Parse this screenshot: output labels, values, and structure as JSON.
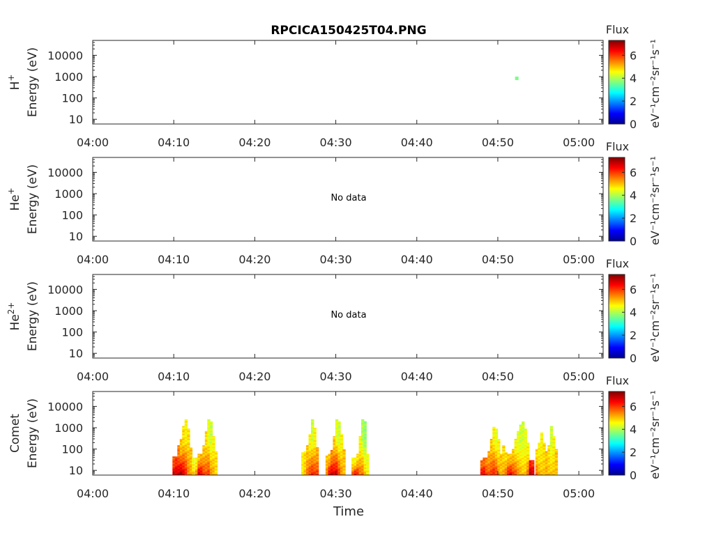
{
  "chart_data": {
    "type": "heatmap",
    "title": "RPCICA150425T04.PNG",
    "xlabel": "Time",
    "x_ticks": [
      "04:00",
      "04:10",
      "04:20",
      "04:30",
      "04:40",
      "04:50",
      "05:00"
    ],
    "x_range_minutes": [
      0,
      63
    ],
    "y_ticks": [
      "10",
      "100",
      "1000",
      "10000"
    ],
    "y_log_range": [
      6,
      50000
    ],
    "y_axis_label": "Energy (eV)",
    "colorbar": {
      "title": "Flux",
      "unit_label": "eV⁻¹cm⁻²sr⁻¹s⁻¹",
      "ticks": [
        "0",
        "2",
        "4",
        "6"
      ],
      "range": [
        0,
        7.3
      ],
      "colormap": "jet"
    },
    "panels": [
      {
        "species_label": "H",
        "superscript": "+",
        "no_data_text": "",
        "cells": [
          [
            52.3,
            800,
            3.6
          ]
        ]
      },
      {
        "species_label": "He",
        "superscript": "+",
        "no_data_text": "No data",
        "cells": []
      },
      {
        "species_label": "He",
        "superscript": "2+",
        "no_data_text": "No data",
        "cells": []
      },
      {
        "species_label": "Comet",
        "superscript": "",
        "no_data_text": "",
        "columns": [
          {
            "t": 10.0,
            "top": 45,
            "lo": 6.5,
            "mid": 5.8
          },
          {
            "t": 10.3,
            "top": 45,
            "lo": 6.8,
            "mid": 6.0
          },
          {
            "t": 10.6,
            "top": 150,
            "lo": 6.8,
            "mid": 5.5
          },
          {
            "t": 10.9,
            "top": 300,
            "lo": 7.0,
            "mid": 5.0
          },
          {
            "t": 11.2,
            "top": 1200,
            "lo": 6.6,
            "mid": 4.8
          },
          {
            "t": 11.5,
            "top": 2500,
            "lo": 6.2,
            "mid": 4.6
          },
          {
            "t": 11.8,
            "top": 900,
            "lo": 5.5,
            "mid": 4.8
          },
          {
            "t": 12.1,
            "top": 120,
            "lo": 5.2,
            "mid": 5.0
          },
          {
            "t": 12.4,
            "top": 40,
            "lo": 5.0,
            "mid": 4.5
          },
          {
            "t": 12.8,
            "top": 40,
            "lo": 5.4,
            "mid": 4.6
          },
          {
            "t": 13.1,
            "top": 60,
            "lo": 6.8,
            "mid": 5.0
          },
          {
            "t": 13.4,
            "top": 60,
            "lo": 6.6,
            "mid": 5.2
          },
          {
            "t": 13.7,
            "top": 150,
            "lo": 6.0,
            "mid": 5.0
          },
          {
            "t": 14.0,
            "top": 700,
            "lo": 5.8,
            "mid": 4.8
          },
          {
            "t": 14.3,
            "top": 2500,
            "lo": 6.0,
            "mid": 4.4
          },
          {
            "t": 14.6,
            "top": 2000,
            "lo": 5.4,
            "mid": 4.2
          },
          {
            "t": 14.9,
            "top": 400,
            "lo": 5.2,
            "mid": 4.6
          },
          {
            "t": 15.2,
            "top": 80,
            "lo": 4.8,
            "mid": 4.8
          },
          {
            "t": 25.9,
            "top": 70,
            "lo": 4.6,
            "mid": 4.6
          },
          {
            "t": 26.2,
            "top": 80,
            "lo": 5.0,
            "mid": 4.8
          },
          {
            "t": 26.5,
            "top": 150,
            "lo": 5.6,
            "mid": 5.0
          },
          {
            "t": 26.8,
            "top": 500,
            "lo": 6.0,
            "mid": 4.6
          },
          {
            "t": 27.1,
            "top": 2500,
            "lo": 6.2,
            "mid": 4.2
          },
          {
            "t": 27.4,
            "top": 1000,
            "lo": 6.0,
            "mid": 4.6
          },
          {
            "t": 27.7,
            "top": 120,
            "lo": 6.0,
            "mid": 5.2
          },
          {
            "t": 28.9,
            "top": 50,
            "lo": 5.4,
            "mid": 5.0
          },
          {
            "t": 29.2,
            "top": 60,
            "lo": 6.6,
            "mid": 5.0
          },
          {
            "t": 29.5,
            "top": 90,
            "lo": 6.8,
            "mid": 5.4
          },
          {
            "t": 29.8,
            "top": 400,
            "lo": 6.6,
            "mid": 5.0
          },
          {
            "t": 30.1,
            "top": 2500,
            "lo": 6.6,
            "mid": 4.4
          },
          {
            "t": 30.4,
            "top": 2000,
            "lo": 6.0,
            "mid": 4.2
          },
          {
            "t": 30.7,
            "top": 500,
            "lo": 5.4,
            "mid": 4.6
          },
          {
            "t": 31.0,
            "top": 100,
            "lo": 5.0,
            "mid": 5.0
          },
          {
            "t": 32.1,
            "top": 40,
            "lo": 5.8,
            "mid": 4.6
          },
          {
            "t": 32.4,
            "top": 40,
            "lo": 6.4,
            "mid": 4.6
          },
          {
            "t": 32.7,
            "top": 60,
            "lo": 6.2,
            "mid": 4.8
          },
          {
            "t": 33.0,
            "top": 400,
            "lo": 5.6,
            "mid": 4.6
          },
          {
            "t": 33.3,
            "top": 2500,
            "lo": 5.6,
            "mid": 4.0
          },
          {
            "t": 33.6,
            "top": 2000,
            "lo": 5.0,
            "mid": 3.8
          },
          {
            "t": 33.9,
            "top": 60,
            "lo": 4.6,
            "mid": 4.4
          },
          {
            "t": 48.0,
            "top": 30,
            "lo": 6.4,
            "mid": 5.6
          },
          {
            "t": 48.3,
            "top": 40,
            "lo": 6.6,
            "mid": 5.6
          },
          {
            "t": 48.6,
            "top": 40,
            "lo": 6.0,
            "mid": 5.4
          },
          {
            "t": 48.9,
            "top": 80,
            "lo": 5.8,
            "mid": 5.2
          },
          {
            "t": 49.2,
            "top": 300,
            "lo": 6.0,
            "mid": 5.0
          },
          {
            "t": 49.5,
            "top": 1100,
            "lo": 6.2,
            "mid": 4.6
          },
          {
            "t": 49.8,
            "top": 900,
            "lo": 6.0,
            "mid": 4.4
          },
          {
            "t": 50.1,
            "top": 300,
            "lo": 5.4,
            "mid": 4.6
          },
          {
            "t": 50.4,
            "top": 60,
            "lo": 5.0,
            "mid": 5.0
          },
          {
            "t": 50.7,
            "top": 150,
            "lo": 5.2,
            "mid": 4.8
          },
          {
            "t": 51.0,
            "top": 70,
            "lo": 5.6,
            "mid": 4.8
          },
          {
            "t": 51.3,
            "top": 60,
            "lo": 6.4,
            "mid": 5.0
          },
          {
            "t": 51.6,
            "top": 60,
            "lo": 6.6,
            "mid": 5.0
          },
          {
            "t": 51.9,
            "top": 100,
            "lo": 6.0,
            "mid": 5.0
          },
          {
            "t": 52.2,
            "top": 300,
            "lo": 5.8,
            "mid": 4.6
          },
          {
            "t": 52.5,
            "top": 700,
            "lo": 5.4,
            "mid": 4.4
          },
          {
            "t": 52.8,
            "top": 1400,
            "lo": 5.2,
            "mid": 4.2
          },
          {
            "t": 53.1,
            "top": 2000,
            "lo": 5.0,
            "mid": 4.2
          },
          {
            "t": 53.4,
            "top": 900,
            "lo": 5.0,
            "mid": 4.4
          },
          {
            "t": 53.7,
            "top": 200,
            "lo": 5.6,
            "mid": 4.6
          },
          {
            "t": 54.0,
            "top": 30,
            "lo": 7.0,
            "mid": 6.2
          },
          {
            "t": 54.3,
            "top": 30,
            "lo": 6.8,
            "mid": 6.0
          },
          {
            "t": 54.8,
            "top": 100,
            "lo": 5.6,
            "mid": 4.8
          },
          {
            "t": 55.1,
            "top": 200,
            "lo": 5.2,
            "mid": 4.6
          },
          {
            "t": 55.4,
            "top": 600,
            "lo": 5.0,
            "mid": 4.6
          },
          {
            "t": 55.7,
            "top": 200,
            "lo": 5.0,
            "mid": 4.8
          },
          {
            "t": 56.0,
            "top": 80,
            "lo": 5.2,
            "mid": 5.0
          },
          {
            "t": 56.3,
            "top": 150,
            "lo": 5.0,
            "mid": 4.8
          },
          {
            "t": 56.6,
            "top": 1200,
            "lo": 5.0,
            "mid": 4.2
          },
          {
            "t": 56.9,
            "top": 400,
            "lo": 5.0,
            "mid": 4.6
          },
          {
            "t": 57.2,
            "top": 100,
            "lo": 5.0,
            "mid": 5.0
          }
        ]
      }
    ]
  }
}
